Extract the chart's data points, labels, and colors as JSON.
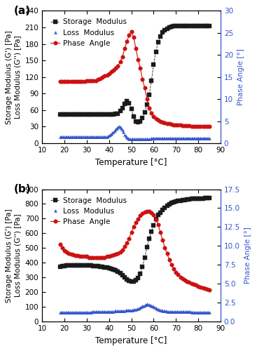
{
  "panel_a": {
    "title_label": "(a)",
    "xlim": [
      10,
      90
    ],
    "ylim_left": [
      0,
      240
    ],
    "ylim_right": [
      0,
      30
    ],
    "yticks_left": [
      0,
      30,
      60,
      90,
      120,
      150,
      180,
      210,
      240
    ],
    "yticks_right": [
      0,
      5,
      10,
      15,
      20,
      25,
      30
    ],
    "xlabel": "Temperature [°C]",
    "ylabel_left": "Storage Modulus (G') [Pa]\nLoss Modulus (G'') [Pa]",
    "ylabel_right": "Phase Angle [°]",
    "storage_T": [
      18,
      19,
      20,
      21,
      22,
      23,
      24,
      25,
      26,
      27,
      28,
      29,
      30,
      31,
      32,
      33,
      34,
      35,
      36,
      37,
      38,
      39,
      40,
      41,
      42,
      43,
      44,
      45,
      46,
      47,
      48,
      49,
      50,
      51,
      52,
      53,
      54,
      55,
      56,
      57,
      58,
      59,
      60,
      61,
      62,
      63,
      64,
      65,
      66,
      67,
      68,
      69,
      70,
      71,
      72,
      73,
      74,
      75,
      76,
      77,
      78,
      79,
      80,
      81,
      82,
      83,
      84,
      85
    ],
    "storage_G": [
      52,
      52,
      52,
      52,
      52,
      52,
      52,
      52,
      52,
      52,
      52,
      52,
      52,
      52,
      52,
      52,
      52,
      52,
      52,
      52,
      52,
      52,
      52,
      52,
      52,
      53,
      54,
      58,
      64,
      71,
      77,
      73,
      63,
      48,
      40,
      38,
      40,
      46,
      56,
      70,
      88,
      113,
      143,
      166,
      183,
      194,
      201,
      205,
      208,
      210,
      211,
      212,
      212,
      212,
      213,
      213,
      213,
      213,
      213,
      213,
      213,
      213,
      213,
      213,
      213,
      213,
      213,
      213
    ],
    "loss_T": [
      18,
      18.5,
      19,
      19.5,
      20,
      20.5,
      21,
      21.5,
      22,
      22.5,
      23,
      23.5,
      24,
      24.5,
      25,
      25.5,
      26,
      26.5,
      27,
      27.5,
      28,
      28.5,
      29,
      29.5,
      30,
      30.5,
      31,
      31.5,
      32,
      32.5,
      33,
      33.5,
      34,
      34.5,
      35,
      35.5,
      36,
      36.5,
      37,
      37.5,
      38,
      38.5,
      39,
      39.5,
      40,
      40.5,
      41,
      41.5,
      42,
      42.5,
      43,
      43.5,
      44,
      44.5,
      45,
      45.5,
      46,
      46.5,
      47,
      47.5,
      48,
      48.5,
      49,
      49.5,
      50,
      50.5,
      51,
      51.5,
      52,
      52.5,
      53,
      53.5,
      54,
      54.5,
      55,
      55.5,
      56,
      56.5,
      57,
      57.5,
      58,
      58.5,
      59,
      59.5,
      60,
      60.5,
      61,
      61.5,
      62,
      62.5,
      63,
      63.5,
      64,
      64.5,
      65,
      65.5,
      66,
      66.5,
      67,
      67.5,
      68,
      68.5,
      69,
      69.5,
      70,
      70.5,
      71,
      71.5,
      72,
      72.5,
      73,
      73.5,
      74,
      74.5,
      75,
      75.5,
      76,
      76.5,
      77,
      77.5,
      78,
      78.5,
      79,
      79.5,
      80,
      80.5,
      81,
      81.5,
      82,
      82.5,
      83,
      83.5,
      84,
      84.5,
      85
    ],
    "loss_G": [
      11,
      11,
      11,
      11,
      11,
      11,
      11,
      11,
      11,
      11,
      11,
      11,
      11,
      11,
      11,
      11,
      11,
      11,
      11,
      11,
      11,
      11,
      11,
      11,
      11,
      11,
      11,
      11,
      11,
      11,
      11,
      11,
      11,
      11,
      11,
      11,
      11,
      11,
      11,
      11,
      12,
      12,
      12,
      13,
      14,
      15,
      17,
      19,
      21,
      23,
      25,
      27,
      29,
      30,
      29,
      27,
      24,
      20,
      16,
      13,
      10,
      9,
      8,
      8,
      8,
      8,
      8,
      8,
      8,
      8,
      8,
      8,
      8,
      8,
      8,
      8,
      8,
      8,
      8,
      8,
      8,
      8,
      9,
      9,
      9,
      9,
      9,
      9,
      9,
      9,
      9,
      9,
      9,
      9,
      9,
      9,
      9,
      9,
      9,
      9,
      9,
      9,
      9,
      9,
      9,
      9,
      9,
      9,
      9,
      9,
      9,
      9,
      9,
      9,
      9,
      9,
      9,
      9,
      9,
      9,
      9,
      9,
      9,
      9,
      9,
      9,
      9,
      9,
      9,
      9,
      9,
      9,
      9,
      9,
      9
    ],
    "phase_T": [
      18,
      19,
      20,
      21,
      22,
      23,
      24,
      25,
      26,
      27,
      28,
      29,
      30,
      31,
      32,
      33,
      34,
      35,
      36,
      37,
      38,
      39,
      40,
      41,
      42,
      43,
      44,
      45,
      46,
      47,
      48,
      49,
      50,
      51,
      52,
      53,
      54,
      55,
      56,
      57,
      58,
      59,
      60,
      61,
      62,
      63,
      64,
      65,
      66,
      67,
      68,
      69,
      70,
      71,
      72,
      73,
      74,
      75,
      76,
      77,
      78,
      79,
      80,
      81,
      82,
      83,
      84,
      85
    ],
    "phase_A": [
      14.0,
      14.0,
      14.0,
      14.0,
      14.0,
      14.0,
      14.0,
      14.0,
      14.0,
      14.0,
      14.0,
      14.0,
      14.1,
      14.1,
      14.1,
      14.2,
      14.2,
      14.5,
      14.7,
      15.0,
      15.2,
      15.5,
      15.8,
      16.2,
      16.5,
      17.0,
      17.5,
      18.5,
      19.5,
      21.5,
      23.0,
      24.5,
      25.3,
      24.0,
      21.5,
      19.0,
      17.0,
      14.5,
      12.5,
      10.0,
      8.0,
      6.8,
      6.0,
      5.5,
      5.2,
      5.0,
      4.8,
      4.6,
      4.5,
      4.4,
      4.3,
      4.2,
      4.2,
      4.1,
      4.1,
      4.0,
      4.0,
      4.0,
      4.0,
      3.9,
      3.9,
      3.9,
      3.9,
      3.9,
      3.9,
      3.9,
      3.9,
      3.9
    ]
  },
  "panel_b": {
    "title_label": "(b)",
    "xlim": [
      10,
      90
    ],
    "ylim_left": [
      0,
      900
    ],
    "ylim_right": [
      0,
      17.5
    ],
    "yticks_left": [
      0,
      100,
      200,
      300,
      400,
      500,
      600,
      700,
      800,
      900
    ],
    "yticks_right": [
      0.0,
      2.5,
      5.0,
      7.5,
      10.0,
      12.5,
      15.0,
      17.5
    ],
    "xlabel": "Temperature [°C]",
    "ylabel_left": "Storage Modulus (G') [Pa]\nLoss Modulus (G'') [Pa]",
    "ylabel_right": "Phase Angle [°]",
    "storage_T": [
      18,
      19,
      20,
      21,
      22,
      23,
      24,
      25,
      26,
      27,
      28,
      29,
      30,
      31,
      32,
      33,
      34,
      35,
      36,
      37,
      38,
      39,
      40,
      41,
      42,
      43,
      44,
      45,
      46,
      47,
      48,
      49,
      50,
      51,
      52,
      53,
      54,
      55,
      56,
      57,
      58,
      59,
      60,
      61,
      62,
      63,
      64,
      65,
      66,
      67,
      68,
      69,
      70,
      71,
      72,
      73,
      74,
      75,
      76,
      77,
      78,
      79,
      80,
      81,
      82,
      83,
      84,
      85
    ],
    "storage_G": [
      375,
      378,
      380,
      382,
      383,
      384,
      385,
      385,
      385,
      385,
      385,
      385,
      384,
      383,
      382,
      380,
      378,
      376,
      374,
      372,
      370,
      368,
      365,
      360,
      355,
      348,
      340,
      328,
      315,
      302,
      288,
      278,
      272,
      275,
      283,
      298,
      326,
      375,
      435,
      505,
      562,
      612,
      655,
      695,
      725,
      742,
      757,
      772,
      787,
      798,
      808,
      813,
      818,
      821,
      823,
      826,
      828,
      830,
      832,
      834,
      835,
      836,
      837,
      838,
      838,
      839,
      839,
      840
    ],
    "loss_T": [
      18,
      18.5,
      19,
      19.5,
      20,
      20.5,
      21,
      21.5,
      22,
      22.5,
      23,
      23.5,
      24,
      24.5,
      25,
      25.5,
      26,
      26.5,
      27,
      27.5,
      28,
      28.5,
      29,
      29.5,
      30,
      30.5,
      31,
      31.5,
      32,
      32.5,
      33,
      33.5,
      34,
      34.5,
      35,
      35.5,
      36,
      36.5,
      37,
      37.5,
      38,
      38.5,
      39,
      39.5,
      40,
      40.5,
      41,
      41.5,
      42,
      42.5,
      43,
      43.5,
      44,
      44.5,
      45,
      45.5,
      46,
      46.5,
      47,
      47.5,
      48,
      48.5,
      49,
      49.5,
      50,
      50.5,
      51,
      51.5,
      52,
      52.5,
      53,
      53.5,
      54,
      54.5,
      55,
      55.5,
      56,
      56.5,
      57,
      57.5,
      58,
      58.5,
      59,
      59.5,
      60,
      60.5,
      61,
      61.5,
      62,
      62.5,
      63,
      63.5,
      64,
      64.5,
      65,
      65.5,
      66,
      66.5,
      67,
      67.5,
      68,
      68.5,
      69,
      69.5,
      70,
      70.5,
      71,
      71.5,
      72,
      72.5,
      73,
      73.5,
      74,
      74.5,
      75,
      75.5,
      76,
      76.5,
      77,
      77.5,
      78,
      78.5,
      79,
      79.5,
      80,
      80.5,
      81,
      81.5,
      82,
      82.5,
      83,
      83.5,
      84,
      84.5,
      85
    ],
    "loss_G": [
      63,
      63,
      63,
      63,
      63,
      63,
      63,
      63,
      63,
      63,
      63,
      63,
      63,
      63,
      63,
      63,
      63,
      64,
      64,
      64,
      64,
      64,
      65,
      65,
      65,
      65,
      65,
      65,
      65,
      66,
      66,
      66,
      66,
      66,
      66,
      67,
      67,
      67,
      67,
      67,
      67,
      68,
      68,
      68,
      68,
      69,
      69,
      70,
      70,
      71,
      71,
      72,
      72,
      73,
      73,
      74,
      74,
      75,
      75,
      76,
      76,
      77,
      77,
      78,
      78,
      79,
      80,
      81,
      83,
      85,
      88,
      91,
      95,
      99,
      104,
      108,
      113,
      117,
      120,
      118,
      115,
      112,
      108,
      104,
      100,
      96,
      92,
      88,
      84,
      81,
      78,
      76,
      74,
      73,
      72,
      71,
      70,
      70,
      69,
      69,
      68,
      68,
      68,
      67,
      67,
      67,
      67,
      67,
      67,
      67,
      67,
      66,
      66,
      66,
      66,
      66,
      66,
      66,
      65,
      65,
      65,
      65,
      65,
      65,
      65,
      65,
      65,
      65,
      65,
      65,
      65,
      65,
      65,
      65,
      65
    ],
    "phase_T": [
      18,
      19,
      20,
      21,
      22,
      23,
      24,
      25,
      26,
      27,
      28,
      29,
      30,
      31,
      32,
      33,
      34,
      35,
      36,
      37,
      38,
      39,
      40,
      41,
      42,
      43,
      44,
      45,
      46,
      47,
      48,
      49,
      50,
      51,
      52,
      53,
      54,
      55,
      56,
      57,
      58,
      59,
      60,
      61,
      62,
      63,
      64,
      65,
      66,
      67,
      68,
      69,
      70,
      71,
      72,
      73,
      74,
      75,
      76,
      77,
      78,
      79,
      80,
      81,
      82,
      83,
      84,
      85
    ],
    "phase_A": [
      10.2,
      9.8,
      9.4,
      9.2,
      9.0,
      8.9,
      8.8,
      8.7,
      8.7,
      8.6,
      8.6,
      8.6,
      8.6,
      8.5,
      8.5,
      8.5,
      8.5,
      8.5,
      8.5,
      8.5,
      8.5,
      8.6,
      8.6,
      8.7,
      8.8,
      8.9,
      9.0,
      9.2,
      9.5,
      9.9,
      10.4,
      11.0,
      11.8,
      12.5,
      13.1,
      13.6,
      14.0,
      14.3,
      14.5,
      14.6,
      14.55,
      14.4,
      14.1,
      13.5,
      12.8,
      11.8,
      10.8,
      9.8,
      9.0,
      8.2,
      7.5,
      7.0,
      6.5,
      6.2,
      5.9,
      5.7,
      5.5,
      5.3,
      5.2,
      5.0,
      4.9,
      4.8,
      4.7,
      4.6,
      4.5,
      4.4,
      4.3,
      4.2
    ]
  },
  "colors": {
    "storage": "#1a1a1a",
    "loss": "#3355cc",
    "phase": "#cc1111",
    "right_axis": "#3355cc"
  },
  "bg_color": "#ffffff",
  "storage_markersize": 4,
  "loss_markersize": 3,
  "phase_markersize": 4,
  "legend_fontsize": 7.5,
  "axis_fontsize": 7.5,
  "tick_fontsize": 7.5,
  "xlabel_fontsize": 8.5
}
